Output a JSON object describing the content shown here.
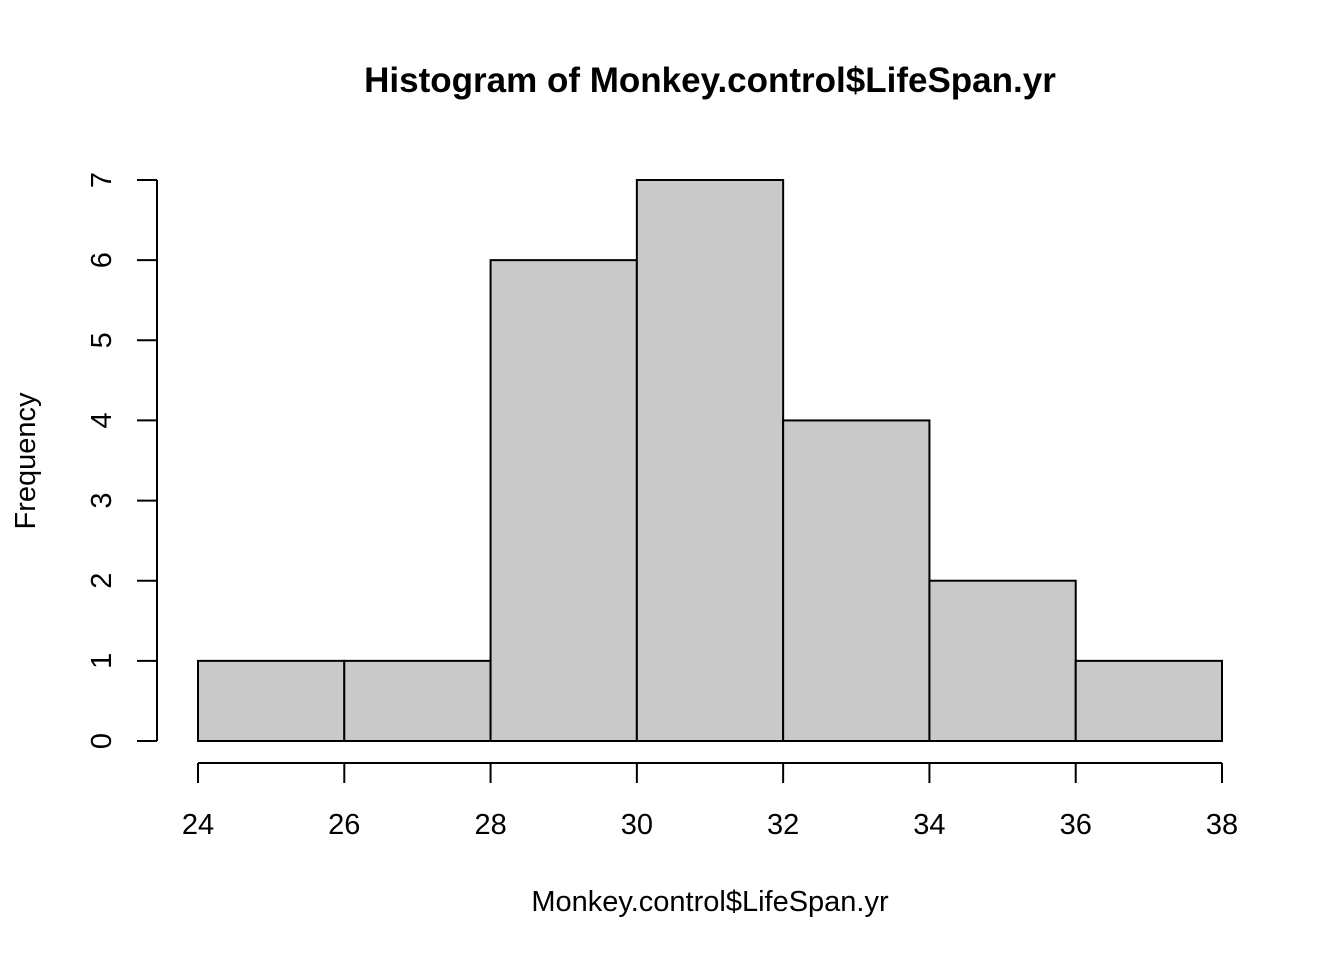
{
  "chart_data": {
    "type": "bar",
    "subtype": "histogram",
    "title": "Histogram of Monkey.control$LifeSpan.yr",
    "xlabel": "Monkey.control$LifeSpan.yr",
    "ylabel": "Frequency",
    "bins": [
      {
        "from": 24,
        "to": 26,
        "count": 1
      },
      {
        "from": 26,
        "to": 28,
        "count": 1
      },
      {
        "from": 28,
        "to": 30,
        "count": 6
      },
      {
        "from": 30,
        "to": 32,
        "count": 7
      },
      {
        "from": 32,
        "to": 34,
        "count": 4
      },
      {
        "from": 34,
        "to": 36,
        "count": 2
      },
      {
        "from": 36,
        "to": 38,
        "count": 1
      }
    ],
    "xlim": [
      24,
      38
    ],
    "ylim": [
      0,
      7
    ],
    "x_ticks": [
      24,
      26,
      28,
      30,
      32,
      34,
      36,
      38
    ],
    "y_ticks": [
      0,
      1,
      2,
      3,
      4,
      5,
      6,
      7
    ],
    "bar_color": "#c9c9c9",
    "grid": false,
    "legend": "none"
  }
}
